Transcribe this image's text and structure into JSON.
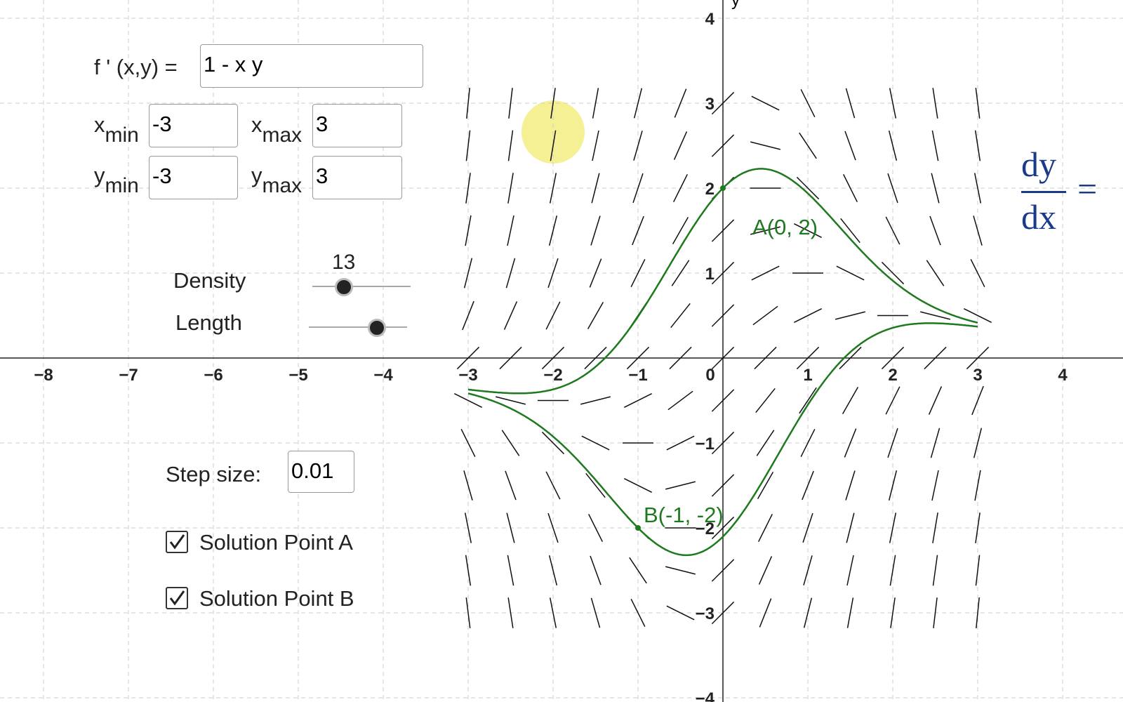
{
  "function_input": {
    "label": "f ' (x,y) =",
    "value": "1 - x y"
  },
  "range_inputs": [
    {
      "label": "x",
      "sub": "min",
      "value": "-3"
    },
    {
      "label": "x",
      "sub": "max",
      "value": "3"
    },
    {
      "label": "y",
      "sub": "min",
      "value": "-3"
    },
    {
      "label": "y",
      "sub": "max",
      "value": "3"
    }
  ],
  "sliders": [
    {
      "label": "Density",
      "value": 13
    },
    {
      "label": "Length"
    }
  ],
  "step_size": {
    "label": "Step size:",
    "value": "0.01"
  },
  "checkboxes": [
    {
      "label": "Solution Point A",
      "checked": true
    },
    {
      "label": "Solution Point B",
      "checked": true
    }
  ],
  "graph": {
    "y_axis_label": "y",
    "x_ticks": [
      {
        "value": -8,
        "label": "−8"
      },
      {
        "value": -7,
        "label": "−7"
      },
      {
        "value": -6,
        "label": "−6"
      },
      {
        "value": -5,
        "label": "−5"
      },
      {
        "value": -4,
        "label": "−4"
      },
      {
        "value": -3,
        "label": "−3"
      },
      {
        "value": -2,
        "label": "−2"
      },
      {
        "value": -1,
        "label": "−1"
      },
      0,
      1,
      2,
      3,
      4
    ],
    "y_ticks": [
      {
        "value": -4,
        "label": "−4"
      },
      {
        "value": -3,
        "label": "−3"
      },
      {
        "value": -2,
        "label": "−2"
      },
      {
        "value": -1,
        "label": "−1"
      },
      1,
      2,
      3,
      4
    ],
    "points": [
      {
        "label": "A(0, 2)",
        "x": 0,
        "y": 2
      },
      {
        "label": "B(-1, -2)",
        "x": -1,
        "y": -2
      }
    ]
  },
  "formula": {
    "numerator": "dy",
    "denominator": "dx",
    "equals": "="
  }
}
